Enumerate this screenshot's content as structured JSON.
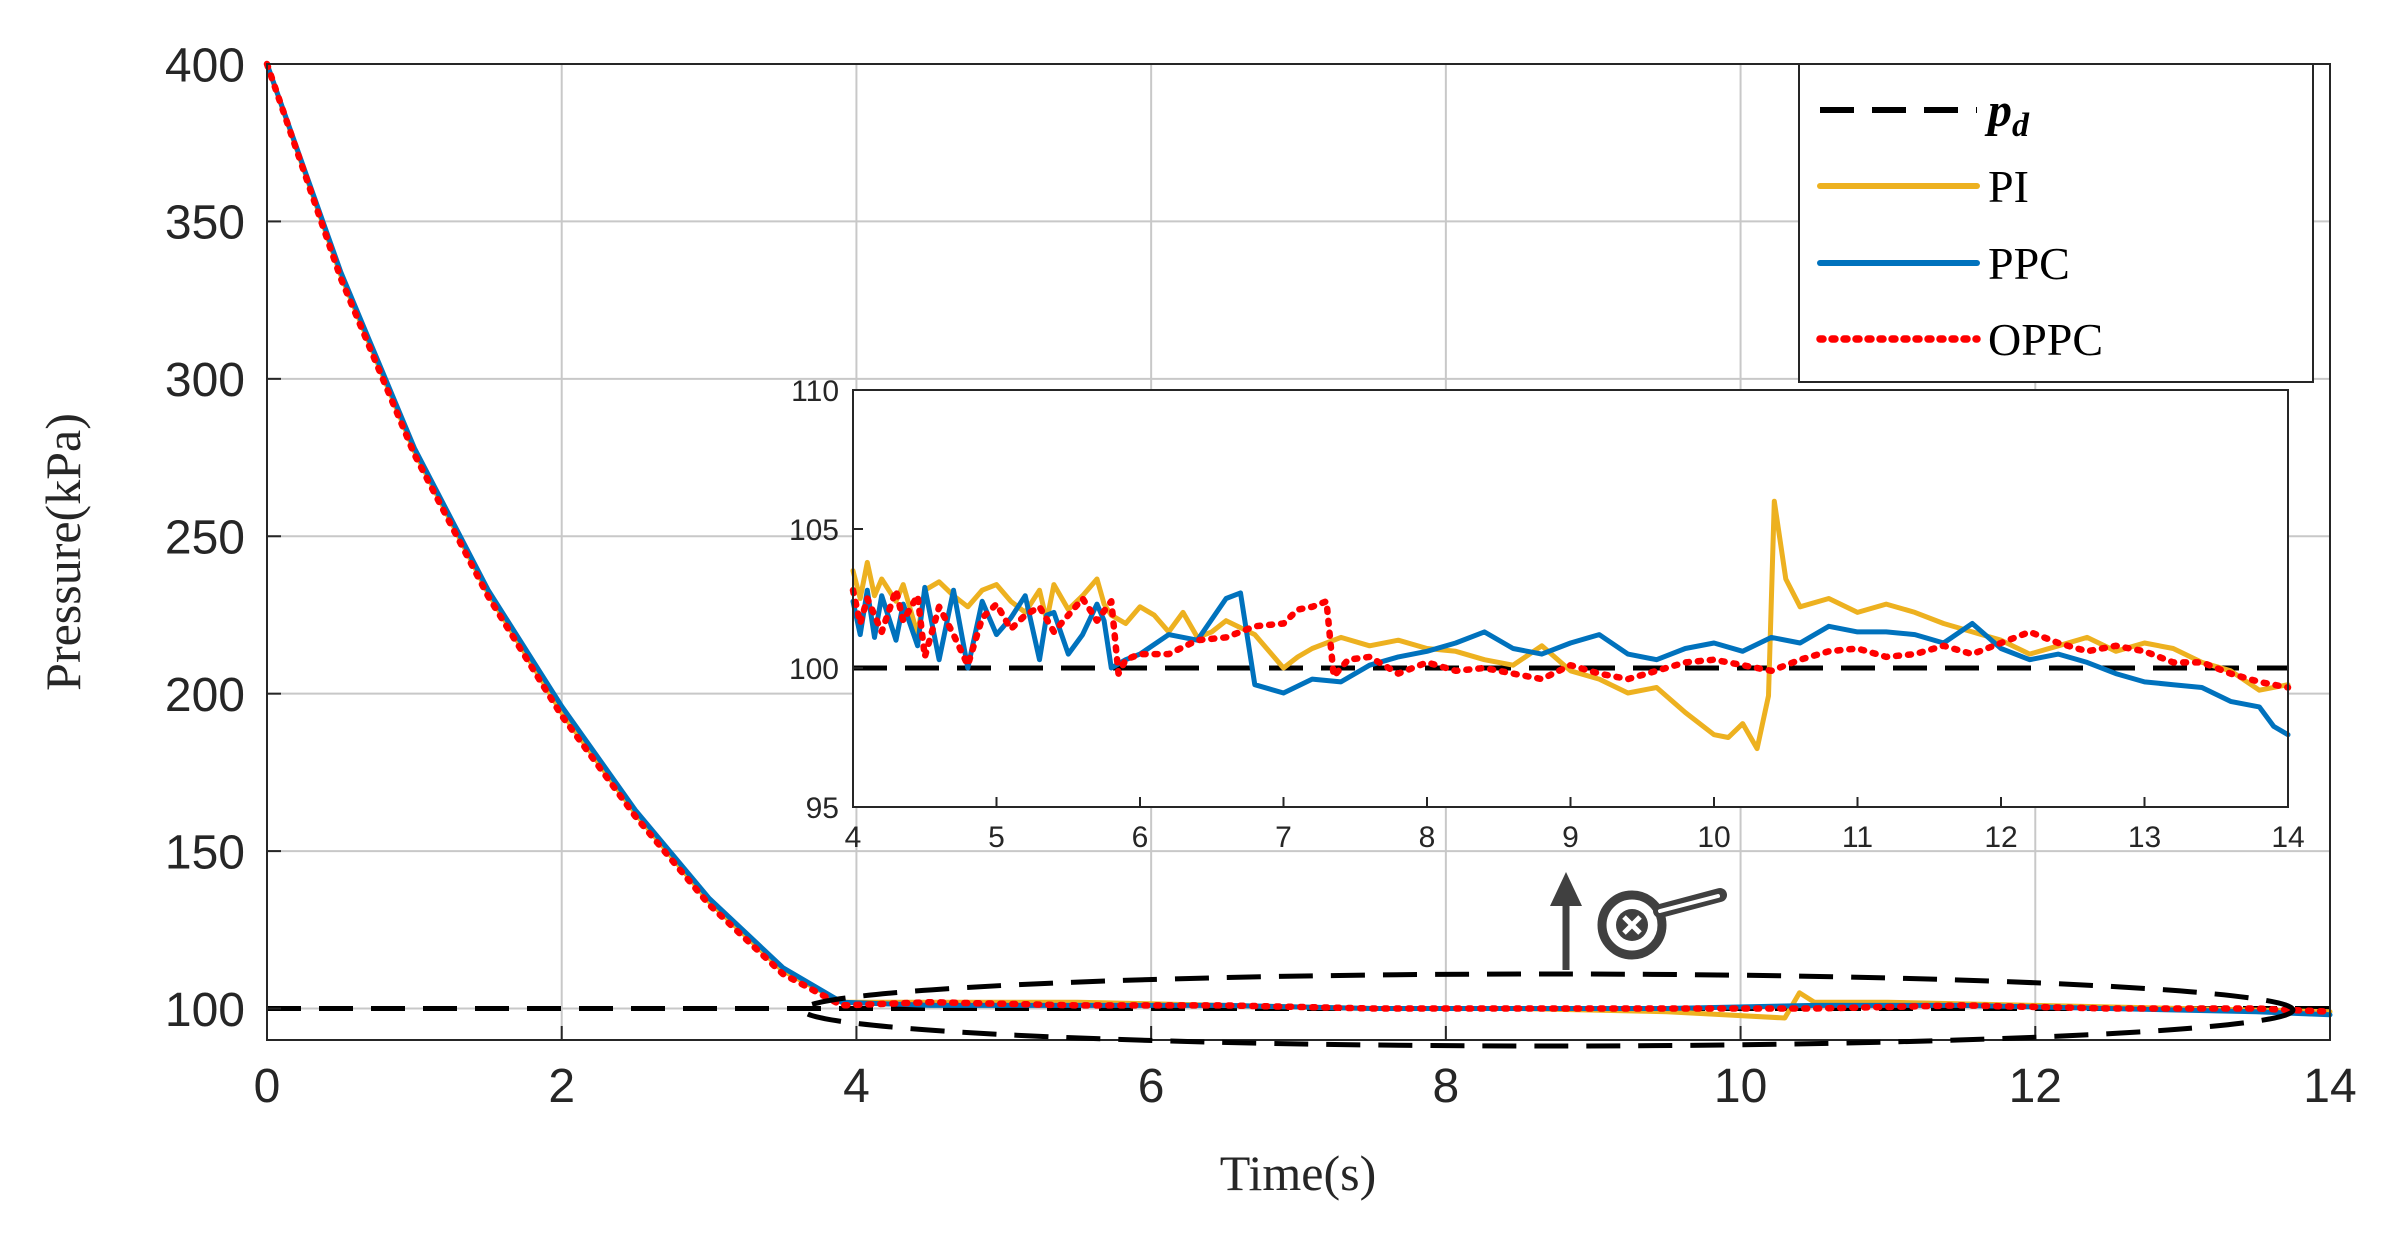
{
  "colors": {
    "pd": "#000000",
    "PI": "#EDB120",
    "PPC": "#0072BD",
    "OPPC": "#FF0000",
    "grid": "#c8c8c8",
    "zoom_icon": "#404040"
  },
  "chart_data": [
    {
      "id": "main",
      "type": "line",
      "xlabel": "Time(s)",
      "ylabel": "Pressure(kPa)",
      "xlim": [
        0,
        14
      ],
      "ylim": [
        90,
        400
      ],
      "xticks": [
        0,
        2,
        4,
        6,
        8,
        10,
        12,
        14
      ],
      "yticks": [
        100,
        150,
        200,
        250,
        300,
        350,
        400
      ],
      "xtick_labels": [
        "0",
        "2",
        "4",
        "6",
        "8",
        "10",
        "12",
        "14"
      ],
      "ytick_labels": [
        "100",
        "150",
        "200",
        "250",
        "300",
        "350",
        "400"
      ],
      "grid": true,
      "legend_position": "top-right",
      "series": [
        {
          "key": "pd",
          "name": "p_d",
          "style": "dashed",
          "x": [
            0,
            14
          ],
          "y": [
            100,
            100
          ]
        },
        {
          "key": "PI",
          "name": "PI",
          "style": "solid",
          "x": [
            0,
            0.5,
            1,
            1.5,
            2,
            2.5,
            3,
            3.5,
            3.9,
            4.5,
            5.5,
            6.5,
            7.5,
            8.5,
            9.5,
            10.3,
            10.4,
            10.5,
            11,
            12,
            13,
            14
          ],
          "y": [
            400,
            333,
            277,
            232,
            194,
            162,
            134,
            112,
            102,
            102,
            102,
            101,
            100,
            100,
            99,
            97,
            105,
            102,
            102,
            101,
            100,
            99
          ]
        },
        {
          "key": "PPC",
          "name": "PPC",
          "style": "solid",
          "x": [
            0,
            0.5,
            1,
            1.5,
            2,
            2.5,
            3,
            3.5,
            3.9,
            4.5,
            5.5,
            6.5,
            7.5,
            8.5,
            9.5,
            10.5,
            11.5,
            12.5,
            13.5,
            14
          ],
          "y": [
            400,
            334,
            278,
            233,
            196,
            163,
            135,
            113,
            102,
            101,
            101,
            101,
            100,
            100,
            100,
            101,
            101,
            100,
            99,
            98
          ]
        },
        {
          "key": "OPPC",
          "name": "OPPC",
          "style": "dotted",
          "x": [
            0,
            0.5,
            1,
            1.5,
            2,
            2.5,
            3,
            3.5,
            3.9,
            4.5,
            5.5,
            6.5,
            7.5,
            8.5,
            9.5,
            10.5,
            11.5,
            12.5,
            13.5,
            14
          ],
          "y": [
            400,
            332,
            276,
            231,
            193,
            161,
            133,
            111,
            101,
            102,
            101,
            101,
            100,
            100,
            100,
            100,
            101,
            100,
            100,
            99
          ]
        }
      ],
      "legend": {
        "entries": [
          {
            "key": "pd",
            "label": "p",
            "sub": "d"
          },
          {
            "key": "PI",
            "label": "PI"
          },
          {
            "key": "PPC",
            "label": "PPC"
          },
          {
            "key": "OPPC",
            "label": "OPPC"
          }
        ]
      },
      "annotation": "dashed ellipse highlights steady-state region (t = 4 to 14 s), zoom arrow points up to inset"
    },
    {
      "id": "inset",
      "type": "line",
      "xlabel": "",
      "ylabel": "",
      "xlim": [
        4,
        14
      ],
      "ylim": [
        95,
        110
      ],
      "xticks": [
        4,
        5,
        6,
        7,
        8,
        9,
        10,
        11,
        12,
        13,
        14
      ],
      "yticks": [
        95,
        100,
        105,
        110
      ],
      "xtick_labels": [
        "4",
        "5",
        "6",
        "7",
        "8",
        "9",
        "10",
        "11",
        "12",
        "13",
        "14"
      ],
      "ytick_labels": [
        "95",
        "100",
        "105",
        "110"
      ],
      "grid": false,
      "series": [
        {
          "key": "pd",
          "name": "p_d",
          "style": "dashed",
          "x": [
            4,
            14
          ],
          "y": [
            100,
            100
          ]
        },
        {
          "key": "PI",
          "name": "PI",
          "style": "solid",
          "x": [
            4,
            4.05,
            4.1,
            4.15,
            4.2,
            4.3,
            4.35,
            4.45,
            4.5,
            4.6,
            4.7,
            4.8,
            4.9,
            5,
            5.1,
            5.2,
            5.3,
            5.35,
            5.4,
            5.5,
            5.6,
            5.7,
            5.75,
            5.8,
            5.9,
            6,
            6.1,
            6.2,
            6.3,
            6.4,
            6.5,
            6.6,
            6.8,
            7,
            7.1,
            7.2,
            7.3,
            7.4,
            7.6,
            7.8,
            8,
            8.2,
            8.4,
            8.6,
            8.8,
            9,
            9.2,
            9.4,
            9.6,
            9.8,
            10,
            10.1,
            10.2,
            10.3,
            10.38,
            10.42,
            10.5,
            10.6,
            10.8,
            11,
            11.2,
            11.4,
            11.6,
            11.8,
            12,
            12.2,
            12.4,
            12.6,
            12.8,
            13,
            13.2,
            13.4,
            13.6,
            13.8,
            14
          ],
          "y": [
            103.5,
            102.5,
            103.8,
            102.6,
            103.2,
            102.4,
            103,
            101.2,
            102.8,
            103.1,
            102.6,
            102.2,
            102.8,
            103,
            102.4,
            102,
            102.8,
            101.7,
            103,
            102.1,
            102.6,
            103.2,
            102.3,
            101.9,
            101.6,
            102.2,
            101.9,
            101.3,
            102,
            101.1,
            101.3,
            101.7,
            101.2,
            100,
            100.4,
            100.7,
            100.9,
            101.1,
            100.8,
            101,
            100.7,
            100.6,
            100.3,
            100.1,
            100.8,
            99.9,
            99.6,
            99.1,
            99.3,
            98.4,
            97.6,
            97.5,
            98,
            97.1,
            99,
            106,
            103.2,
            102.2,
            102.5,
            102,
            102.3,
            102,
            101.6,
            101.3,
            101,
            100.5,
            100.8,
            101.1,
            100.6,
            100.9,
            100.7,
            100.2,
            99.9,
            99.2,
            99.4
          ]
        },
        {
          "key": "PPC",
          "name": "PPC",
          "style": "solid",
          "x": [
            4,
            4.05,
            4.1,
            4.15,
            4.2,
            4.3,
            4.35,
            4.45,
            4.5,
            4.6,
            4.7,
            4.8,
            4.9,
            5,
            5.1,
            5.2,
            5.3,
            5.35,
            5.4,
            5.5,
            5.6,
            5.7,
            5.75,
            5.8,
            5.9,
            6,
            6.2,
            6.4,
            6.6,
            6.7,
            6.8,
            7,
            7.2,
            7.4,
            7.6,
            7.8,
            8,
            8.2,
            8.4,
            8.6,
            8.8,
            9,
            9.2,
            9.4,
            9.6,
            9.8,
            10,
            10.2,
            10.4,
            10.6,
            10.8,
            11,
            11.2,
            11.4,
            11.6,
            11.8,
            12,
            12.2,
            12.4,
            12.6,
            12.8,
            13,
            13.2,
            13.4,
            13.6,
            13.8,
            13.9,
            14
          ],
          "y": [
            102.4,
            101.2,
            102.8,
            101.1,
            102.6,
            101,
            102.3,
            100.8,
            102.9,
            100.3,
            102.8,
            100,
            102.4,
            101.2,
            101.8,
            102.6,
            100.3,
            101.9,
            102,
            100.5,
            101.2,
            102.3,
            101.7,
            100,
            100.3,
            100.5,
            101.2,
            101,
            102.5,
            102.7,
            99.4,
            99.1,
            99.6,
            99.5,
            100.1,
            100.4,
            100.6,
            100.9,
            101.3,
            100.7,
            100.5,
            100.9,
            101.2,
            100.5,
            100.3,
            100.7,
            100.9,
            100.6,
            101.1,
            100.9,
            101.5,
            101.3,
            101.3,
            101.2,
            100.9,
            101.6,
            100.7,
            100.3,
            100.5,
            100.2,
            99.8,
            99.5,
            99.4,
            99.3,
            98.8,
            98.6,
            97.9,
            97.6
          ]
        },
        {
          "key": "OPPC",
          "name": "OPPC",
          "style": "dotted",
          "x": [
            4,
            4.05,
            4.1,
            4.2,
            4.3,
            4.35,
            4.45,
            4.5,
            4.6,
            4.7,
            4.8,
            4.9,
            5,
            5.1,
            5.2,
            5.3,
            5.4,
            5.5,
            5.6,
            5.7,
            5.8,
            5.85,
            5.9,
            6,
            6.2,
            6.4,
            6.6,
            6.8,
            7,
            7.1,
            7.2,
            7.3,
            7.35,
            7.45,
            7.6,
            7.8,
            8,
            8.2,
            8.4,
            8.6,
            8.8,
            9,
            9.2,
            9.4,
            9.6,
            9.8,
            10,
            10.2,
            10.4,
            10.6,
            10.8,
            11,
            11.2,
            11.4,
            11.6,
            11.8,
            12,
            12.2,
            12.4,
            12.6,
            12.8,
            13,
            13.2,
            13.4,
            13.6,
            13.8,
            14
          ],
          "y": [
            102.8,
            101.6,
            102.5,
            101.3,
            102.8,
            101.7,
            102.6,
            100.4,
            102.2,
            101.2,
            100.1,
            101.8,
            102.3,
            101.4,
            101.9,
            102.2,
            101.3,
            101.9,
            102.5,
            101.7,
            102.4,
            99.8,
            100.3,
            100.5,
            100.5,
            101,
            101.1,
            101.5,
            101.6,
            102.1,
            102.2,
            102.4,
            99.7,
            100.3,
            100.4,
            99.8,
            100.2,
            99.9,
            100,
            99.8,
            99.6,
            100.1,
            99.8,
            99.6,
            99.9,
            100.2,
            100.3,
            100.1,
            99.9,
            100.3,
            100.6,
            100.7,
            100.4,
            100.5,
            100.8,
            100.5,
            100.9,
            101.3,
            100.9,
            100.6,
            100.8,
            100.6,
            100.2,
            100.2,
            99.8,
            99.5,
            99.3
          ]
        }
      ]
    }
  ]
}
